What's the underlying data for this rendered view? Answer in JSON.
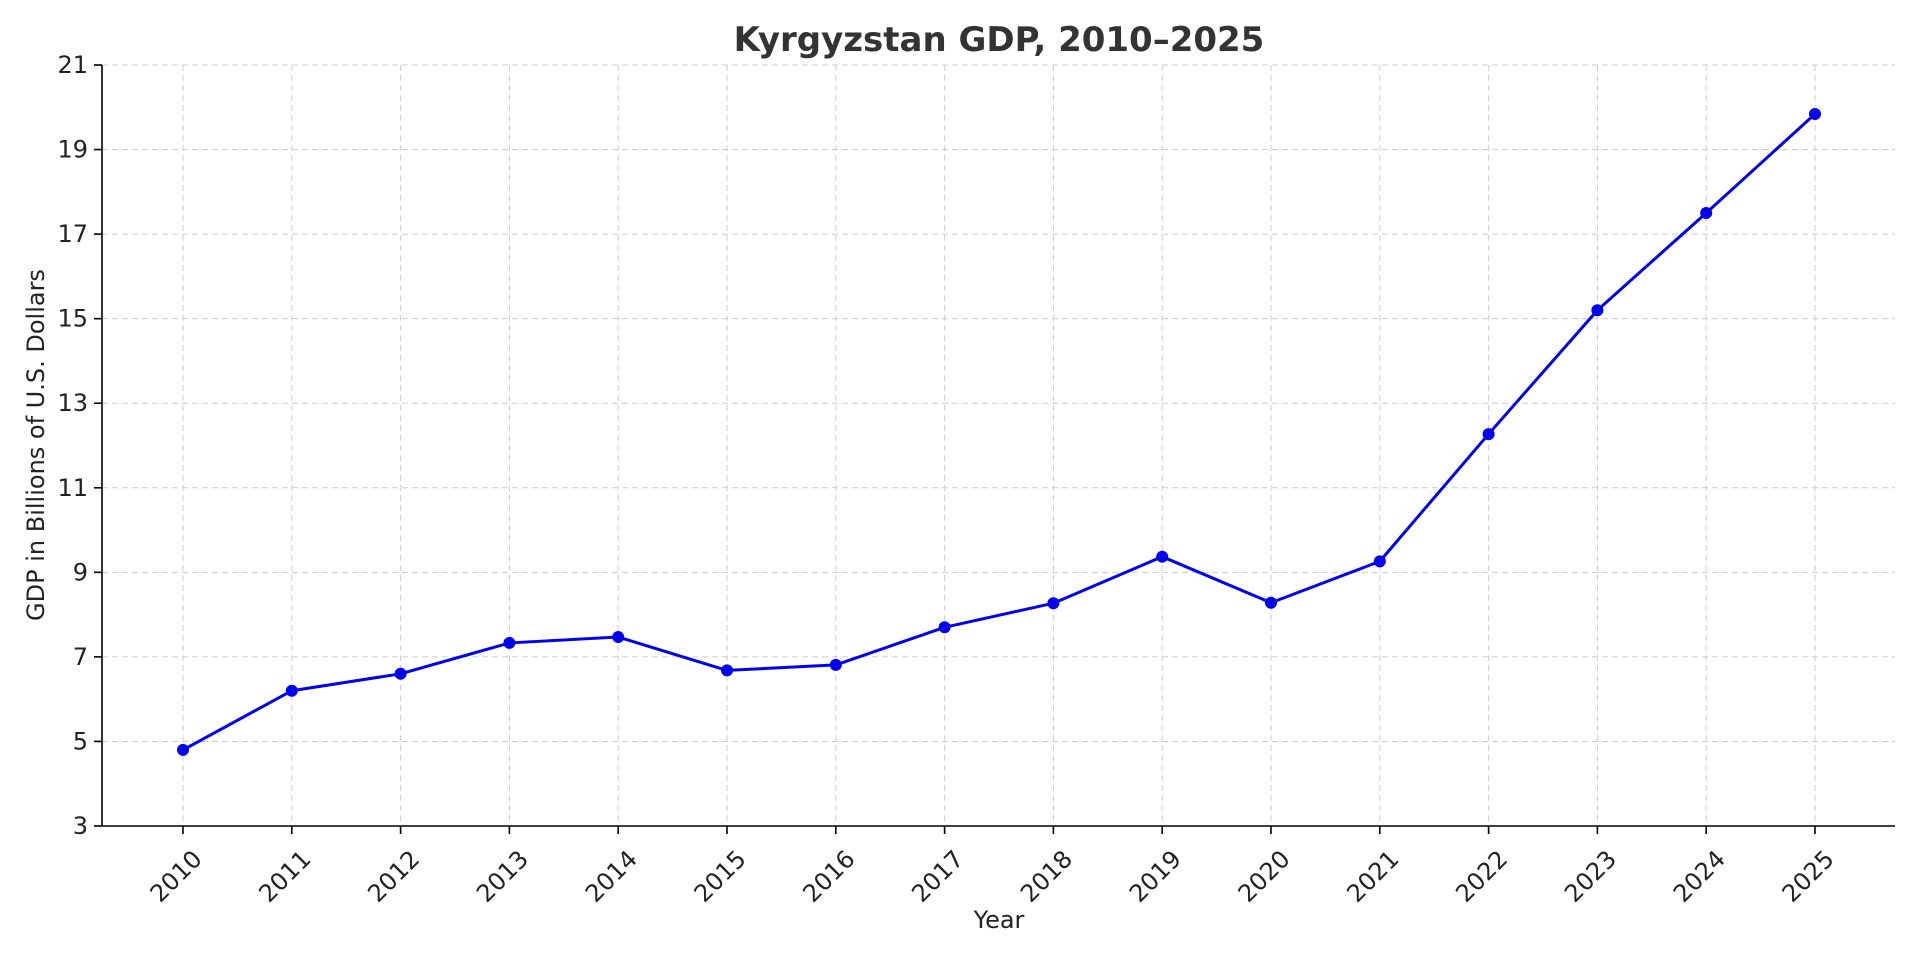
{
  "chart_data": {
    "type": "line",
    "title": "Kyrgyzstan GDP, 2010–2025",
    "xlabel": "Year",
    "ylabel": "GDP in Billions of U.S. Dollars",
    "x": [
      2010,
      2011,
      2012,
      2013,
      2014,
      2015,
      2016,
      2017,
      2018,
      2019,
      2020,
      2021,
      2022,
      2023,
      2024,
      2025
    ],
    "series": [
      {
        "values": [
          4.8,
          6.2,
          6.6,
          7.33,
          7.47,
          6.68,
          6.81,
          7.7,
          8.27,
          9.37,
          8.28,
          9.26,
          12.27,
          15.2,
          17.5,
          19.84
        ],
        "color": "#0000ee"
      }
    ],
    "ylim": [
      3,
      21
    ],
    "yticks": [
      3,
      5,
      7,
      9,
      11,
      13,
      15,
      17,
      19,
      21
    ],
    "grid": true,
    "legend": "none"
  }
}
